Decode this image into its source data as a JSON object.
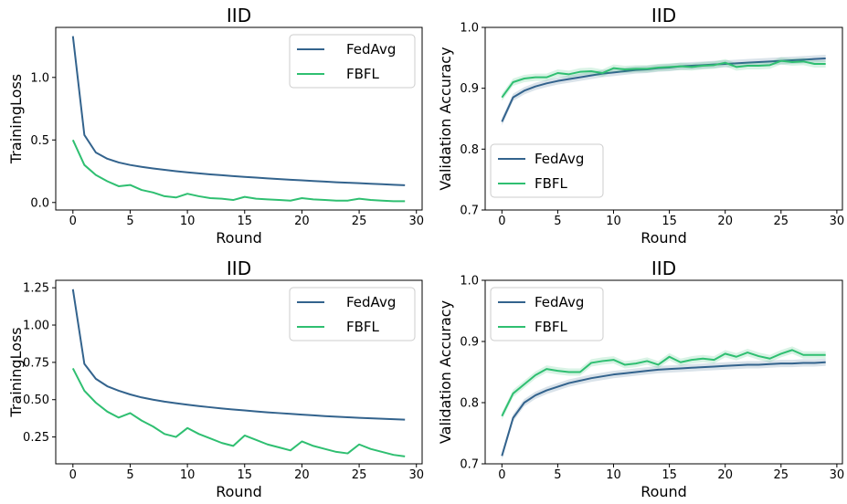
{
  "colors": {
    "FedAvg": "#33638d",
    "FBFL": "#2fbf71"
  },
  "chart_data": [
    {
      "type": "line",
      "title": "IID",
      "xlabel": "Round",
      "ylabel": "TrainingLoss",
      "xlim": [
        -1.5,
        30.5
      ],
      "ylim": [
        -0.06,
        1.4
      ],
      "xticks": [
        0,
        5,
        10,
        15,
        20,
        25,
        30
      ],
      "yticks": [
        0.0,
        0.5,
        1.0
      ],
      "ytick_labels": [
        "0.0",
        "0.5",
        "1.0"
      ],
      "legend": "top-right",
      "x": [
        0,
        1,
        2,
        3,
        4,
        5,
        6,
        7,
        8,
        9,
        10,
        11,
        12,
        13,
        14,
        15,
        16,
        17,
        18,
        19,
        20,
        21,
        22,
        23,
        24,
        25,
        26,
        27,
        28,
        29
      ],
      "series": [
        {
          "name": "FedAvg",
          "values": [
            1.33,
            0.54,
            0.4,
            0.35,
            0.32,
            0.3,
            0.285,
            0.272,
            0.261,
            0.25,
            0.241,
            0.233,
            0.225,
            0.218,
            0.211,
            0.205,
            0.199,
            0.193,
            0.187,
            0.182,
            0.177,
            0.172,
            0.167,
            0.162,
            0.158,
            0.154,
            0.15,
            0.146,
            0.142,
            0.138
          ]
        },
        {
          "name": "FBFL",
          "values": [
            0.5,
            0.3,
            0.22,
            0.17,
            0.13,
            0.14,
            0.1,
            0.08,
            0.05,
            0.04,
            0.07,
            0.05,
            0.035,
            0.03,
            0.02,
            0.045,
            0.03,
            0.025,
            0.02,
            0.015,
            0.035,
            0.025,
            0.02,
            0.015,
            0.015,
            0.03,
            0.02,
            0.015,
            0.01,
            0.01
          ]
        }
      ]
    },
    {
      "type": "line",
      "title": "IID",
      "xlabel": "Round",
      "ylabel": "Validation Accuracy",
      "xlim": [
        -1.5,
        30.5
      ],
      "ylim": [
        0.7,
        1.0
      ],
      "xticks": [
        0,
        5,
        10,
        15,
        20,
        25,
        30
      ],
      "yticks": [
        0.7,
        0.8,
        0.9,
        1.0
      ],
      "ytick_labels": [
        "0.7",
        "0.8",
        "0.9",
        "1.0"
      ],
      "legend": "lower-left",
      "x": [
        0,
        1,
        2,
        3,
        4,
        5,
        6,
        7,
        8,
        9,
        10,
        11,
        12,
        13,
        14,
        15,
        16,
        17,
        18,
        19,
        20,
        21,
        22,
        23,
        24,
        25,
        26,
        27,
        28,
        29
      ],
      "series": [
        {
          "name": "FedAvg",
          "values": [
            0.845,
            0.885,
            0.896,
            0.903,
            0.908,
            0.912,
            0.915,
            0.918,
            0.921,
            0.924,
            0.926,
            0.928,
            0.93,
            0.931,
            0.933,
            0.934,
            0.936,
            0.937,
            0.938,
            0.939,
            0.94,
            0.941,
            0.942,
            0.943,
            0.944,
            0.945,
            0.946,
            0.947,
            0.948,
            0.949
          ]
        },
        {
          "name": "FBFL",
          "values": [
            0.885,
            0.91,
            0.916,
            0.918,
            0.918,
            0.925,
            0.923,
            0.927,
            0.928,
            0.925,
            0.933,
            0.931,
            0.932,
            0.932,
            0.934,
            0.935,
            0.936,
            0.935,
            0.937,
            0.938,
            0.942,
            0.935,
            0.937,
            0.937,
            0.938,
            0.945,
            0.943,
            0.944,
            0.94,
            0.94
          ]
        }
      ]
    },
    {
      "type": "line",
      "title": "IID",
      "xlabel": "Round",
      "ylabel": "TrainingLoss",
      "xlim": [
        -1.5,
        30.5
      ],
      "ylim": [
        0.07,
        1.3
      ],
      "xticks": [
        0,
        5,
        10,
        15,
        20,
        25,
        30
      ],
      "yticks": [
        0.25,
        0.5,
        0.75,
        1.0,
        1.25
      ],
      "ytick_labels": [
        "0.25",
        "0.50",
        "0.75",
        "1.00",
        "1.25"
      ],
      "legend": "top-right",
      "x": [
        0,
        1,
        2,
        3,
        4,
        5,
        6,
        7,
        8,
        9,
        10,
        11,
        12,
        13,
        14,
        15,
        16,
        17,
        18,
        19,
        20,
        21,
        22,
        23,
        24,
        25,
        26,
        27,
        28,
        29
      ],
      "series": [
        {
          "name": "FedAvg",
          "values": [
            1.24,
            0.74,
            0.64,
            0.59,
            0.56,
            0.535,
            0.515,
            0.5,
            0.487,
            0.476,
            0.466,
            0.457,
            0.449,
            0.441,
            0.434,
            0.428,
            0.421,
            0.415,
            0.41,
            0.405,
            0.4,
            0.395,
            0.39,
            0.386,
            0.382,
            0.378,
            0.375,
            0.372,
            0.369,
            0.366
          ]
        },
        {
          "name": "FBFL",
          "values": [
            0.71,
            0.56,
            0.48,
            0.42,
            0.38,
            0.41,
            0.36,
            0.32,
            0.27,
            0.25,
            0.31,
            0.27,
            0.24,
            0.21,
            0.19,
            0.26,
            0.23,
            0.2,
            0.18,
            0.16,
            0.22,
            0.19,
            0.17,
            0.15,
            0.14,
            0.2,
            0.17,
            0.15,
            0.13,
            0.12
          ]
        }
      ]
    },
    {
      "type": "line",
      "title": "IID",
      "xlabel": "Round",
      "ylabel": "Validation Accuracy",
      "xlim": [
        -1.5,
        30.5
      ],
      "ylim": [
        0.7,
        1.0
      ],
      "xticks": [
        0,
        5,
        10,
        15,
        20,
        25,
        30
      ],
      "yticks": [
        0.7,
        0.8,
        0.9,
        1.0
      ],
      "ytick_labels": [
        "0.7",
        "0.8",
        "0.9",
        "1.0"
      ],
      "legend": "top-left",
      "x": [
        0,
        1,
        2,
        3,
        4,
        5,
        6,
        7,
        8,
        9,
        10,
        11,
        12,
        13,
        14,
        15,
        16,
        17,
        18,
        19,
        20,
        21,
        22,
        23,
        24,
        25,
        26,
        27,
        28,
        29
      ],
      "series": [
        {
          "name": "FedAvg",
          "values": [
            0.713,
            0.775,
            0.8,
            0.812,
            0.82,
            0.826,
            0.832,
            0.836,
            0.84,
            0.843,
            0.846,
            0.848,
            0.85,
            0.852,
            0.854,
            0.855,
            0.856,
            0.857,
            0.858,
            0.859,
            0.86,
            0.861,
            0.862,
            0.862,
            0.863,
            0.864,
            0.864,
            0.865,
            0.865,
            0.866
          ]
        },
        {
          "name": "FBFL",
          "values": [
            0.778,
            0.815,
            0.83,
            0.845,
            0.855,
            0.852,
            0.85,
            0.85,
            0.865,
            0.868,
            0.87,
            0.862,
            0.864,
            0.868,
            0.862,
            0.875,
            0.866,
            0.87,
            0.872,
            0.87,
            0.88,
            0.875,
            0.882,
            0.876,
            0.872,
            0.88,
            0.886,
            0.878,
            0.878,
            0.878
          ]
        }
      ]
    }
  ]
}
